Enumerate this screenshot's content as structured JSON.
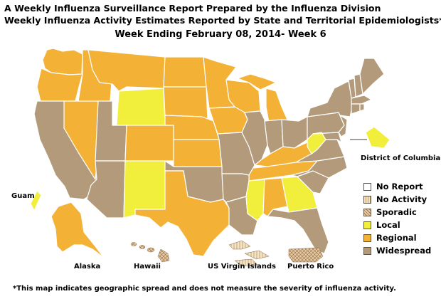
{
  "title": {
    "line1": "A Weekly Influenza Surveillance Report Prepared by the Influenza Division",
    "line2": "Weekly Influenza Activity Estimates Reported by State and Territorial Epidemiologists*",
    "week": "Week Ending February 08, 2014- Week 6"
  },
  "labels": {
    "dc": "District of Columbia",
    "guam": "Guam",
    "alaska": "Alaska",
    "hawaii": "Hawaii",
    "usvi": "US Virgin Islands",
    "pr": "Puerto Rico"
  },
  "legend": [
    {
      "key": "no_report",
      "label": "No Report",
      "color": "#ffffff"
    },
    {
      "key": "no_activity",
      "label": "No Activity",
      "color": "#f3e4c8"
    },
    {
      "key": "sporadic",
      "label": "Sporadic",
      "color": "#e8c9a1"
    },
    {
      "key": "local",
      "label": "Local",
      "color": "#f2ee3c"
    },
    {
      "key": "regional",
      "label": "Regional",
      "color": "#f3b136"
    },
    {
      "key": "widespread",
      "label": "Widespread",
      "color": "#b29a7b"
    }
  ],
  "activity_levels": {
    "local": [
      "Wyoming",
      "New Mexico",
      "West Virginia",
      "Mississippi",
      "Georgia",
      "District of Columbia",
      "Guam"
    ],
    "regional": [
      "Washington",
      "Oregon",
      "Idaho",
      "Montana",
      "Nevada",
      "Colorado",
      "North Dakota",
      "South Dakota",
      "Nebraska",
      "Kansas",
      "Minnesota",
      "Iowa",
      "Wisconsin",
      "Michigan",
      "Texas",
      "Kentucky",
      "Tennessee",
      "Alabama",
      "Alaska"
    ],
    "widespread": [
      "California",
      "Utah",
      "Arizona",
      "Oklahoma",
      "Missouri",
      "Arkansas",
      "Louisiana",
      "Illinois",
      "Indiana",
      "Ohio",
      "Pennsylvania",
      "New York",
      "Vermont",
      "New Hampshire",
      "Maine",
      "Massachusetts",
      "Rhode Island",
      "Connecticut",
      "New Jersey",
      "Delaware",
      "Maryland",
      "Virginia",
      "North Carolina",
      "South Carolina",
      "Florida"
    ],
    "sporadic": [
      "Hawaii",
      "Puerto Rico"
    ],
    "no_activity": [
      "US Virgin Islands"
    ]
  },
  "footnote": "*This map indicates geographic spread and does not measure the severity of influenza activity."
}
